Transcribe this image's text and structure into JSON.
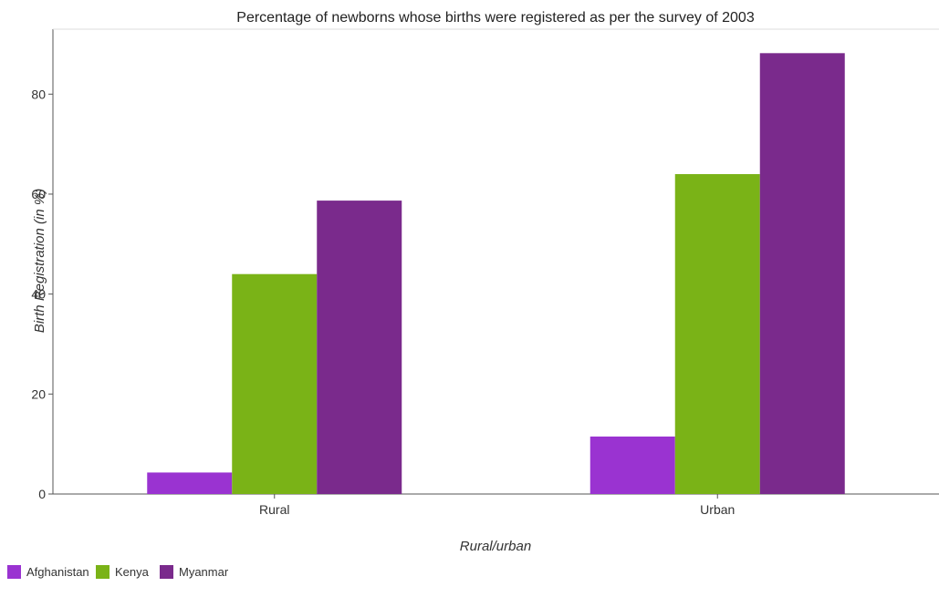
{
  "chart_data": {
    "type": "bar",
    "title": "Percentage of newborns whose births were registered as per the survey of 2003",
    "xlabel": "Rural/urban",
    "ylabel": "Birth Registration (in %)",
    "categories": [
      "Rural",
      "Urban"
    ],
    "ylim": [
      0,
      93
    ],
    "yticks": [
      0,
      20,
      40,
      60,
      80
    ],
    "grid": false,
    "legend_position": "bottom-left",
    "series": [
      {
        "name": "Afghanistan",
        "color": "#9a33d1",
        "values": [
          4.3,
          11.5
        ]
      },
      {
        "name": "Kenya",
        "color": "#7ab317",
        "values": [
          44.0,
          64.0
        ]
      },
      {
        "name": "Myanmar",
        "color": "#7a2a8c",
        "values": [
          58.7,
          88.2
        ]
      }
    ]
  }
}
